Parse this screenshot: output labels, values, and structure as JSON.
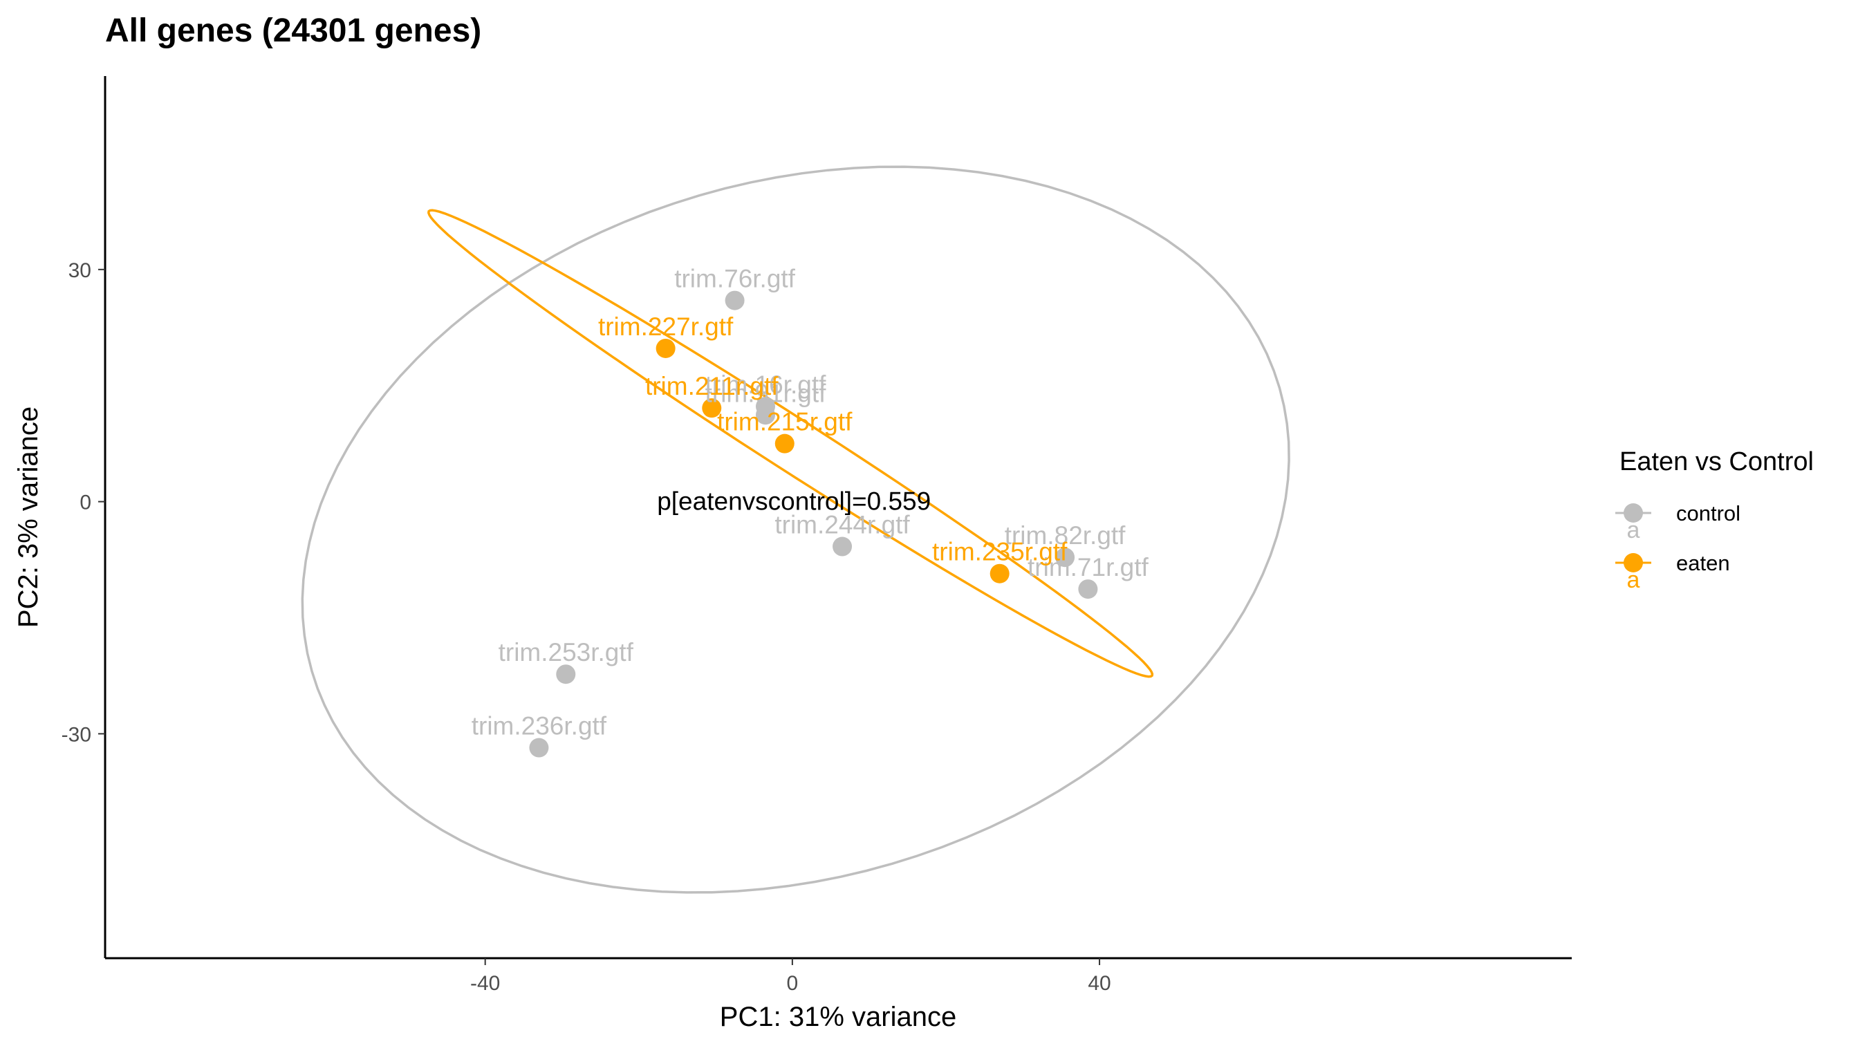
{
  "chart_data": {
    "type": "scatter",
    "title": "All genes (24301 genes)",
    "xlabel": "PC1: 31% variance",
    "ylabel": "PC2: 3% variance",
    "xlim": [
      -89.5,
      101.5
    ],
    "ylim": [
      -59,
      55
    ],
    "xticks": [
      -40,
      0,
      40
    ],
    "yticks": [
      -30,
      0,
      30
    ],
    "grid": false,
    "legend": {
      "title": "Eaten vs Control",
      "position": "right",
      "entries": [
        {
          "label": "control",
          "color": "#BEBEBE",
          "key_letter": "a"
        },
        {
          "label": "eaten",
          "color": "#FFA500",
          "key_letter": "a"
        }
      ]
    },
    "annotation": "p[eatenvscontrol]=0.559",
    "series": [
      {
        "name": "control",
        "color": "#BEBEBE",
        "points": [
          {
            "x": -7.5,
            "y": 26,
            "label": "trim.76r.gtf"
          },
          {
            "x": -3.5,
            "y": 12.3,
            "label": "trim.16r.gtf"
          },
          {
            "x": -3.5,
            "y": 11.2,
            "label": "trim.91r.gtf"
          },
          {
            "x": 6.5,
            "y": -5.8,
            "label": "trim.244r.gtf"
          },
          {
            "x": 35.5,
            "y": -7.2,
            "label": "trim.82r.gtf"
          },
          {
            "x": 38.5,
            "y": -11.3,
            "label": "trim.71r.gtf"
          },
          {
            "x": -29.5,
            "y": -22.3,
            "label": "trim.253r.gtf"
          },
          {
            "x": -33,
            "y": -31.8,
            "label": "trim.236r.gtf"
          }
        ]
      },
      {
        "name": "eaten",
        "color": "#FFA500",
        "points": [
          {
            "x": -16.5,
            "y": 19.8,
            "label": "trim.227r.gtf"
          },
          {
            "x": -10.5,
            "y": 12.1,
            "label": "trim.211r.gtf"
          },
          {
            "x": -1,
            "y": 7.5,
            "label": "trim.215r.gtf"
          },
          {
            "x": 27,
            "y": -9.3,
            "label": "trim.235r.gtf"
          }
        ]
      }
    ]
  }
}
